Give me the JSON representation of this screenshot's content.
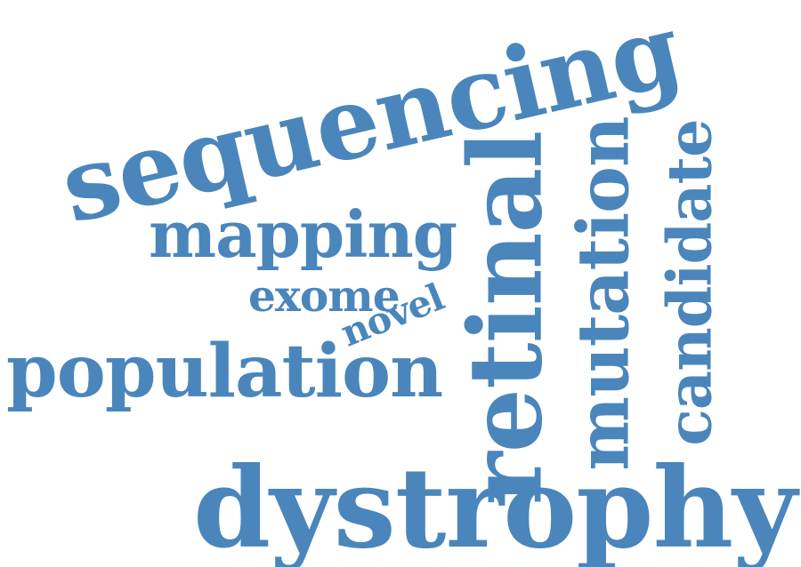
{
  "colors": {
    "word": "#4a86bb",
    "background": "#ffffff"
  },
  "words": {
    "sequencing": "sequencing",
    "retinal": "retinal",
    "mutation": "mutation",
    "candidate": "candidate",
    "mapping": "mapping",
    "exome": "exome",
    "novel": "novel",
    "population": "population",
    "dystrophy": "dystrophy"
  }
}
